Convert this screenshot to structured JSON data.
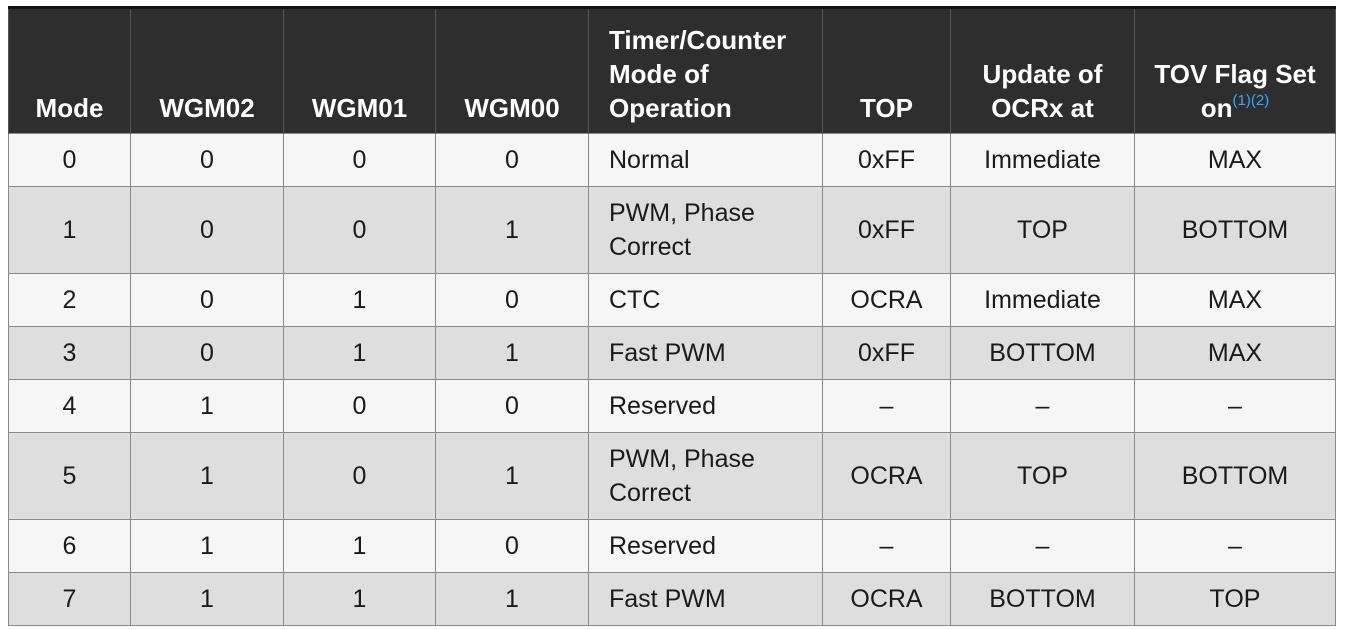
{
  "table": {
    "headers": [
      {
        "label": "Mode",
        "align": "center"
      },
      {
        "label": "WGM02",
        "align": "center"
      },
      {
        "label": "WGM01",
        "align": "center"
      },
      {
        "label": "WGM00",
        "align": "center"
      },
      {
        "label": "Timer/Counter Mode of Operation",
        "align": "left"
      },
      {
        "label": "TOP",
        "align": "center"
      },
      {
        "label": "Update of OCRx at",
        "align": "center"
      },
      {
        "label": "TOV Flag Set on",
        "align": "center",
        "sup": "(1)(2)"
      }
    ],
    "rows": [
      [
        "0",
        "0",
        "0",
        "0",
        "Normal",
        "0xFF",
        "Immediate",
        "MAX"
      ],
      [
        "1",
        "0",
        "0",
        "1",
        "PWM, Phase Correct",
        "0xFF",
        "TOP",
        "BOTTOM"
      ],
      [
        "2",
        "0",
        "1",
        "0",
        "CTC",
        "OCRA",
        "Immediate",
        "MAX"
      ],
      [
        "3",
        "0",
        "1",
        "1",
        "Fast PWM",
        "0xFF",
        "BOTTOM",
        "MAX"
      ],
      [
        "4",
        "1",
        "0",
        "0",
        "Reserved",
        "–",
        "–",
        "–"
      ],
      [
        "5",
        "1",
        "0",
        "1",
        "PWM, Phase Correct",
        "OCRA",
        "TOP",
        "BOTTOM"
      ],
      [
        "6",
        "1",
        "1",
        "0",
        "Reserved",
        "–",
        "–",
        "–"
      ],
      [
        "7",
        "1",
        "1",
        "1",
        "Fast PWM",
        "OCRA",
        "BOTTOM",
        "TOP"
      ]
    ]
  }
}
